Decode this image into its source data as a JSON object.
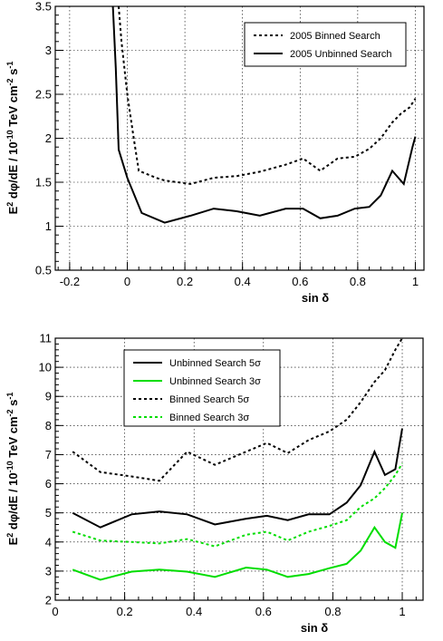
{
  "chart_data": [
    {
      "type": "line",
      "xlabel": "sin δ",
      "ylabel": "E² dφ/dE / 10⁻¹⁰ TeV cm⁻² s⁻¹",
      "xlim": [
        -0.25,
        1.03
      ],
      "ylim": [
        0.5,
        3.5
      ],
      "xticks": [
        -0.2,
        0,
        0.2,
        0.4,
        0.6,
        0.8,
        1
      ],
      "xtick_labels": [
        "-0.2",
        "0",
        "0.2",
        "0.4",
        "0.6",
        "0.8",
        "1"
      ],
      "yticks": [
        0.5,
        1,
        1.5,
        2,
        2.5,
        3,
        3.5
      ],
      "ytick_labels": [
        "0.5",
        "1",
        "1.5",
        "2",
        "2.5",
        "3",
        "3.5"
      ],
      "grid": true,
      "legend_position": "top-right",
      "series": [
        {
          "name": "2005 Binned Search",
          "style": "dotted",
          "color": "#000000",
          "x": [
            -0.03,
            -0.02,
            0.0,
            0.02,
            0.04,
            0.1,
            0.13,
            0.22,
            0.3,
            0.38,
            0.46,
            0.55,
            0.61,
            0.67,
            0.73,
            0.79,
            0.84,
            0.88,
            0.92,
            0.95,
            0.98,
            1.0
          ],
          "y": [
            3.5,
            3.1,
            2.5,
            2.05,
            1.63,
            1.55,
            1.52,
            1.48,
            1.55,
            1.57,
            1.62,
            1.7,
            1.77,
            1.63,
            1.77,
            1.79,
            1.88,
            2.0,
            2.18,
            2.28,
            2.35,
            2.45
          ]
        },
        {
          "name": "2005 Unbinned Search",
          "style": "solid",
          "color": "#000000",
          "x": [
            -0.05,
            -0.04,
            -0.03,
            0.0,
            0.05,
            0.13,
            0.22,
            0.3,
            0.38,
            0.46,
            0.55,
            0.61,
            0.67,
            0.73,
            0.79,
            0.84,
            0.88,
            0.92,
            0.96,
            0.99,
            1.0
          ],
          "y": [
            3.5,
            2.8,
            1.87,
            1.55,
            1.15,
            1.04,
            1.12,
            1.2,
            1.17,
            1.12,
            1.2,
            1.2,
            1.09,
            1.12,
            1.2,
            1.22,
            1.35,
            1.63,
            1.48,
            1.9,
            2.02
          ]
        }
      ]
    },
    {
      "type": "line",
      "xlabel": "sin δ",
      "ylabel": "E² dφ/dE / 10⁻¹⁰ TeV cm⁻² s⁻¹",
      "xlim": [
        0,
        1.06
      ],
      "ylim": [
        2,
        11
      ],
      "xticks": [
        0,
        0.2,
        0.4,
        0.6,
        0.8,
        1
      ],
      "xtick_labels": [
        "0",
        "0.2",
        "0.4",
        "0.6",
        "0.8",
        "1"
      ],
      "yticks": [
        2,
        3,
        4,
        5,
        6,
        7,
        8,
        9,
        10,
        11
      ],
      "ytick_labels": [
        "2",
        "3",
        "4",
        "5",
        "6",
        "7",
        "8",
        "9",
        "10",
        "11"
      ],
      "grid": true,
      "legend_position": "top-left",
      "series": [
        {
          "name": "Unbinned Search 5σ",
          "style": "solid",
          "color": "#000000",
          "x": [
            0.05,
            0.13,
            0.22,
            0.3,
            0.38,
            0.46,
            0.55,
            0.61,
            0.67,
            0.73,
            0.79,
            0.84,
            0.88,
            0.92,
            0.95,
            0.98,
            1.0
          ],
          "y": [
            5.0,
            4.5,
            4.95,
            5.05,
            4.95,
            4.6,
            4.8,
            4.9,
            4.75,
            4.95,
            4.95,
            5.35,
            5.95,
            7.1,
            6.3,
            6.5,
            7.9
          ]
        },
        {
          "name": "Unbinned Search 3σ",
          "style": "solid",
          "color": "#00dd00",
          "x": [
            0.05,
            0.13,
            0.22,
            0.3,
            0.38,
            0.46,
            0.55,
            0.61,
            0.67,
            0.73,
            0.79,
            0.84,
            0.88,
            0.92,
            0.95,
            0.98,
            1.0
          ],
          "y": [
            3.05,
            2.7,
            2.98,
            3.05,
            2.98,
            2.8,
            3.12,
            3.05,
            2.8,
            2.9,
            3.1,
            3.25,
            3.7,
            4.5,
            4.0,
            3.8,
            5.0
          ]
        },
        {
          "name": "Binned Search 5σ",
          "style": "dotted",
          "color": "#000000",
          "x": [
            0.05,
            0.13,
            0.22,
            0.3,
            0.38,
            0.46,
            0.55,
            0.61,
            0.67,
            0.73,
            0.79,
            0.84,
            0.88,
            0.92,
            0.95,
            0.98,
            1.0
          ],
          "y": [
            7.1,
            6.4,
            6.25,
            6.1,
            7.1,
            6.65,
            7.1,
            7.4,
            7.05,
            7.5,
            7.8,
            8.2,
            8.8,
            9.5,
            9.9,
            10.6,
            11.0
          ]
        },
        {
          "name": "Binned Search 3σ",
          "style": "dotted",
          "color": "#00dd00",
          "x": [
            0.05,
            0.13,
            0.22,
            0.3,
            0.38,
            0.46,
            0.55,
            0.61,
            0.67,
            0.73,
            0.79,
            0.84,
            0.88,
            0.92,
            0.95,
            0.98,
            1.0
          ],
          "y": [
            4.35,
            4.05,
            4.0,
            3.95,
            4.1,
            3.85,
            4.25,
            4.35,
            4.05,
            4.35,
            4.55,
            4.75,
            5.2,
            5.5,
            5.85,
            6.3,
            6.7
          ]
        }
      ]
    }
  ],
  "icons": {
    "legend_swatch_solid": "line-swatch",
    "legend_swatch_dotted": "dotted-line-swatch"
  }
}
